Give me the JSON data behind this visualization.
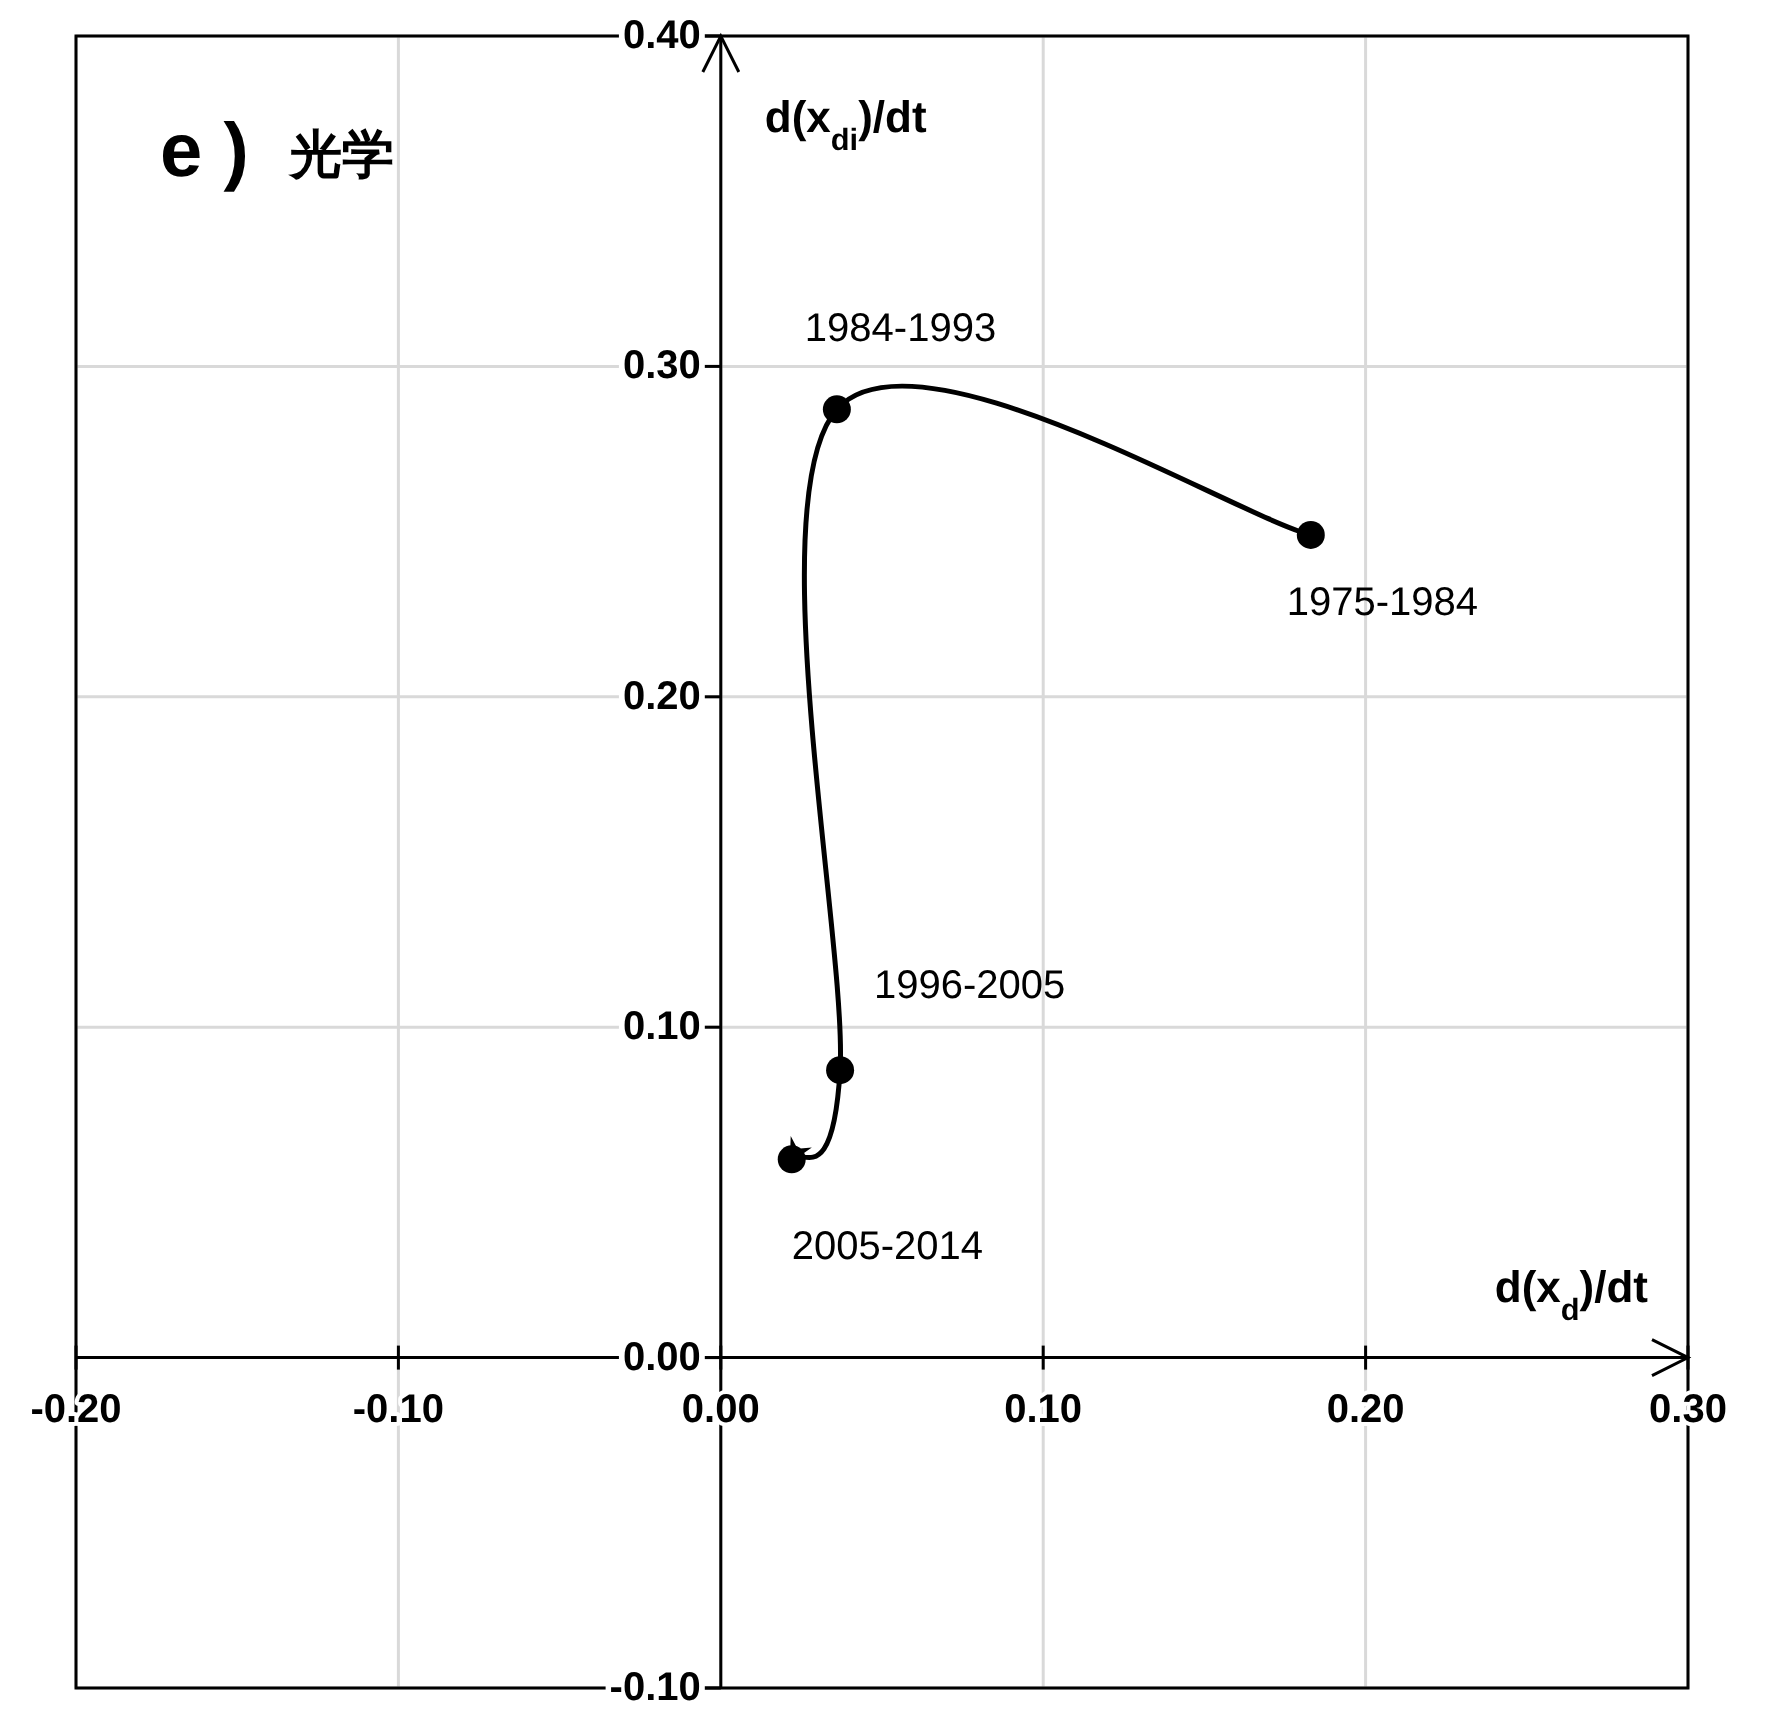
{
  "chart_data": {
    "type": "line",
    "title": "e )",
    "subtitle": "光学",
    "xlabel": "d(x$_{d}$)/dt",
    "ylabel": "d(x$_{di}$)/dt",
    "xlim": [
      -0.2,
      0.3
    ],
    "ylim": [
      -0.1,
      0.4
    ],
    "xticks": [
      {
        "value": -0.2,
        "label": "-0.20"
      },
      {
        "value": -0.1,
        "label": "-0.10"
      },
      {
        "value": 0,
        "label": "0.00"
      },
      {
        "value": 0.1,
        "label": "0.10"
      },
      {
        "value": 0.2,
        "label": "0.20"
      },
      {
        "value": 0.3,
        "label": "0.30"
      }
    ],
    "yticks": [
      {
        "value": -0.1,
        "label": "-0.10"
      },
      {
        "value": 0,
        "label": "0.00"
      },
      {
        "value": 0.1,
        "label": "0.10"
      },
      {
        "value": 0.2,
        "label": "0.20"
      },
      {
        "value": 0.3,
        "label": "0.30"
      },
      {
        "value": 0.4,
        "label": "0.40"
      }
    ],
    "grid": true,
    "marker": "circle",
    "line_style": "solid",
    "series": [
      {
        "color": "#000000",
        "x": [
          0.183,
          0.036,
          0.037,
          0.022
        ],
        "values": [
          0.249,
          0.287,
          0.087,
          0.06
        ]
      }
    ],
    "annotations": [
      {
        "text": "1975-1984",
        "x": 0.183,
        "y": 0.249
      },
      {
        "text": "1984-1993",
        "x": 0.036,
        "y": 0.287
      },
      {
        "text": "1996-2005",
        "x": 0.037,
        "y": 0.087
      },
      {
        "text": "2005-2014",
        "x": 0.022,
        "y": 0.06
      }
    ]
  }
}
